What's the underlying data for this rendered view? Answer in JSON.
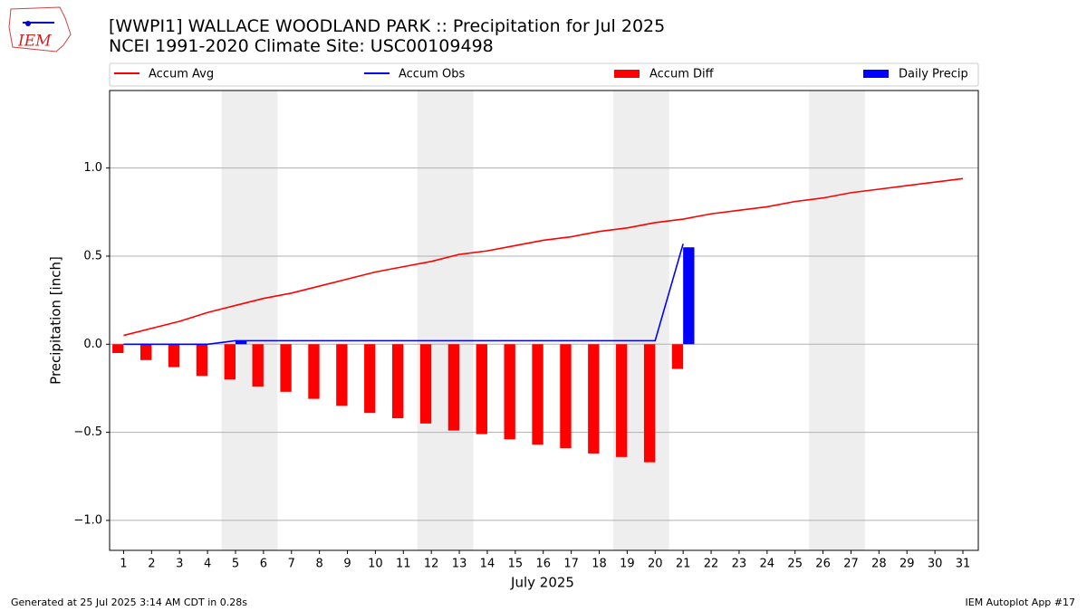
{
  "chart_data": {
    "type": "bar",
    "title": "[WWPI1] WALLACE WOODLAND PARK :: Precipitation for Jul 2025",
    "subtitle": "NCEI 1991-2020 Climate Site: USC00109498",
    "logo_text": "IEM",
    "xlabel": "July 2025",
    "ylabel": "Precipitation [inch]",
    "footer_left": "Generated at 25 Jul 2025 3:14 AM CDT in 0.28s",
    "footer_right": "IEM Autoplot App #17",
    "x": [
      1,
      2,
      3,
      4,
      5,
      6,
      7,
      8,
      9,
      10,
      11,
      12,
      13,
      14,
      15,
      16,
      17,
      18,
      19,
      20,
      21,
      22,
      23,
      24,
      25,
      26,
      27,
      28,
      29,
      30,
      31
    ],
    "xlim": [
      0.5,
      31.55
    ],
    "xticks": [
      1,
      2,
      3,
      4,
      5,
      6,
      7,
      8,
      9,
      10,
      11,
      12,
      13,
      14,
      15,
      16,
      17,
      18,
      19,
      20,
      21,
      22,
      23,
      24,
      25,
      26,
      27,
      28,
      29,
      30,
      31
    ],
    "ylim": [
      -1.17,
      1.44
    ],
    "yticks": [
      {
        "value": -1.0,
        "label": "−1.0"
      },
      {
        "value": -0.5,
        "label": "−0.5"
      },
      {
        "value": 0,
        "label": "0.0"
      },
      {
        "value": 0.5,
        "label": "0.5"
      },
      {
        "value": 1.0,
        "label": "1.0"
      }
    ],
    "grid": true,
    "weekend_shading": [
      [
        4.5,
        6.5
      ],
      [
        11.5,
        13.5
      ],
      [
        18.5,
        20.5
      ],
      [
        25.5,
        27.5
      ]
    ],
    "series": [
      {
        "name": "Accum Avg",
        "type": "line",
        "color": "#ff0000",
        "values": [
          0.05,
          0.09,
          0.13,
          0.18,
          0.22,
          0.26,
          0.29,
          0.33,
          0.37,
          0.41,
          0.44,
          0.47,
          0.51,
          0.53,
          0.56,
          0.59,
          0.61,
          0.64,
          0.66,
          0.69,
          0.71,
          0.74,
          0.76,
          0.78,
          0.81,
          0.83,
          0.86,
          0.88,
          0.9,
          0.92,
          0.94
        ]
      },
      {
        "name": "Accum Obs",
        "type": "line",
        "color": "#0000ff",
        "values": [
          0,
          0,
          0,
          0,
          0.02,
          0.02,
          0.02,
          0.02,
          0.02,
          0.02,
          0.02,
          0.02,
          0.02,
          0.02,
          0.02,
          0.02,
          0.02,
          0.02,
          0.02,
          0.02,
          0.57,
          null,
          null,
          null,
          null,
          null,
          null,
          null,
          null,
          null,
          null
        ]
      },
      {
        "name": "Accum Diff",
        "type": "bar",
        "color": "#ff0000",
        "values": [
          -0.05,
          -0.09,
          -0.13,
          -0.18,
          -0.2,
          -0.24,
          -0.27,
          -0.31,
          -0.35,
          -0.39,
          -0.42,
          -0.45,
          -0.49,
          -0.51,
          -0.54,
          -0.57,
          -0.59,
          -0.62,
          -0.64,
          -0.67,
          -0.14,
          null,
          null,
          null,
          null,
          null,
          null,
          null,
          null,
          null,
          null
        ]
      },
      {
        "name": "Daily Precip",
        "type": "bar",
        "color": "#0000ff",
        "values": [
          0,
          0,
          0,
          0,
          0.02,
          0,
          0,
          0,
          0,
          0,
          0,
          0,
          0,
          0,
          0,
          0,
          0,
          0,
          0,
          0,
          0.55,
          null,
          null,
          null,
          null,
          null,
          null,
          null,
          null,
          null,
          null
        ]
      }
    ]
  }
}
